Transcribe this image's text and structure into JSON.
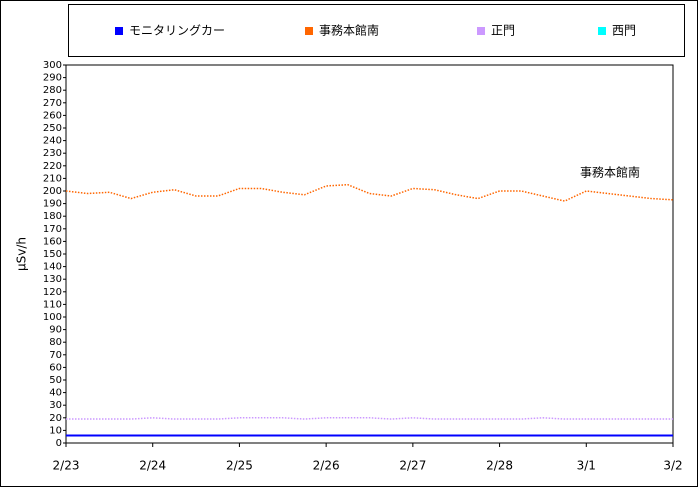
{
  "chart_data": {
    "type": "line",
    "categories": [
      "2/23",
      null,
      null,
      null,
      "2/24",
      null,
      null,
      null,
      "2/25",
      null,
      null,
      null,
      "2/26",
      null,
      null,
      null,
      "2/27",
      null,
      null,
      null,
      "2/28",
      null,
      null,
      null,
      "3/1",
      null,
      null,
      null,
      "3/2"
    ],
    "series": [
      {
        "name": "モニタリングカー",
        "color": "#0000ff",
        "values": [
          6,
          6,
          6,
          6,
          6,
          6,
          6,
          6,
          6,
          6,
          6,
          6,
          6,
          6,
          6,
          6,
          6,
          6,
          6,
          6,
          6,
          6,
          6,
          6,
          6,
          6,
          6,
          6,
          6
        ]
      },
      {
        "name": "事務本館南",
        "color": "#ff6600",
        "values": [
          200,
          198,
          199,
          194,
          199,
          201,
          196,
          196,
          202,
          202,
          199,
          197,
          204,
          205,
          198,
          196,
          202,
          201,
          197,
          194,
          200,
          200,
          196,
          192,
          200,
          198,
          196,
          194,
          193
        ]
      },
      {
        "name": "正門",
        "color": "#cc99ff",
        "values": [
          19,
          19,
          19,
          19,
          20,
          19,
          19,
          19,
          20,
          20,
          20,
          19,
          20,
          20,
          20,
          19,
          20,
          19,
          19,
          19,
          19,
          19,
          20,
          19,
          19,
          19,
          19,
          19,
          19
        ]
      },
      {
        "name": "西門",
        "color": "#00ffff",
        "values": [
          null,
          null,
          null,
          null,
          null,
          null,
          null,
          null,
          null,
          null,
          null,
          null,
          null,
          null,
          null,
          null,
          null,
          null,
          null,
          null,
          null,
          null,
          null,
          null,
          null,
          null,
          null,
          null,
          null
        ]
      }
    ],
    "ylabel": "μSv/h",
    "annotation": "事務本館南",
    "ylim": [
      0,
      300
    ],
    "yticks": [
      0,
      10,
      20,
      30,
      40,
      50,
      60,
      70,
      80,
      90,
      100,
      110,
      120,
      130,
      140,
      150,
      160,
      170,
      180,
      190,
      200,
      210,
      220,
      230,
      240,
      250,
      260,
      270,
      280,
      290,
      300
    ],
    "grid": false
  }
}
